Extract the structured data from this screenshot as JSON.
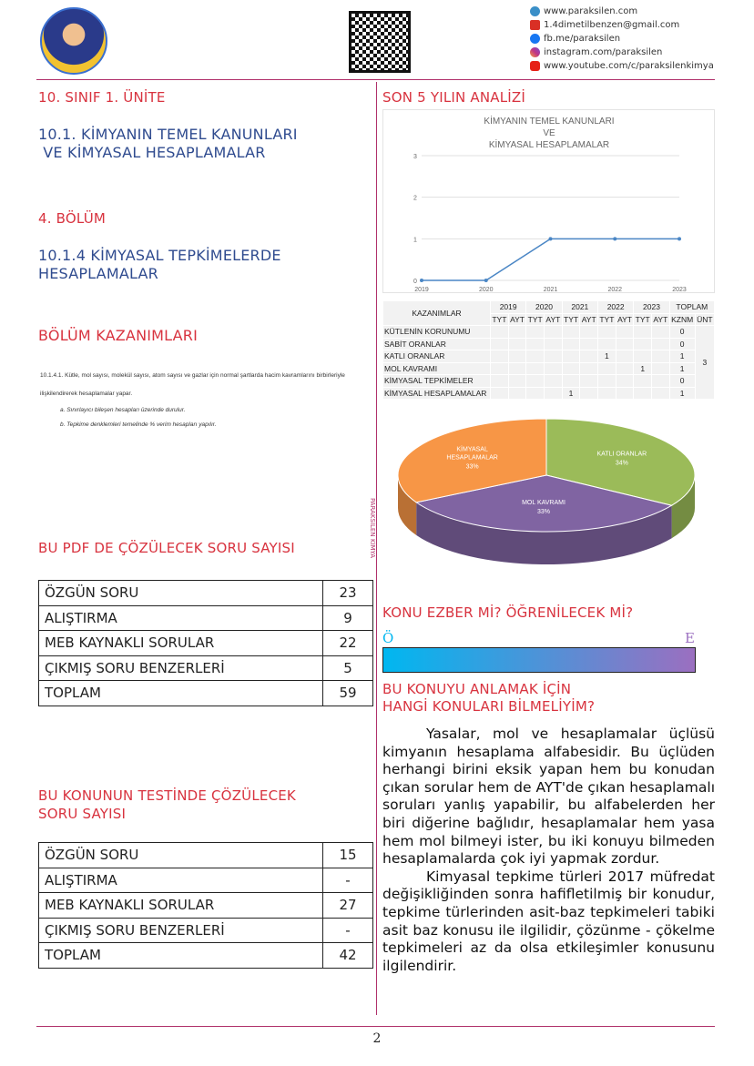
{
  "header": {
    "contacts": [
      {
        "icon": "web-icon",
        "text": "www.paraksilen.com",
        "color": "#3a8fc8"
      },
      {
        "icon": "gmail-icon",
        "text": "1.4dimetilbenzen@gmail.com",
        "color": "#d93025"
      },
      {
        "icon": "facebook-icon",
        "text": "fb.me/paraksilen",
        "color": "#1877f2"
      },
      {
        "icon": "instagram-icon",
        "text": "instagram.com/paraksilen",
        "color": "#c13584"
      },
      {
        "icon": "youtube-icon",
        "text": "www.youtube.com/c/paraksilenkimya",
        "color": "#e62117"
      }
    ]
  },
  "left": {
    "unit": "10. SINIF 1. ÜNİTE",
    "topic_line1": "10.1. KİMYANIN TEMEL KANUNLARI",
    "topic_line2": " VE KİMYASAL HESAPLAMALAR",
    "section": "4. BÖLÜM",
    "subtopic_line1": "10.1.4 KİMYASAL TEPKİMELERDE",
    "subtopic_line2": "HESAPLAMALAR",
    "outcomes_title": "BÖLÜM KAZANIMLARI",
    "outcome_main": "10.1.4.1. Kütle, mol sayısı, molekül sayısı, atom sayısı ve gazlar için normal şartlarda hacim kavramlarını birbirleriyle ilişkilendirerek hesaplamalar yapar.",
    "outcome_a": "a. Sınırlayıcı bileşen hesapları üzerinde durulur.",
    "outcome_b": "b. Tepkime denklemleri temelinde % verim hesapları yapılır.",
    "pdf_title": "BU PDF DE ÇÖZÜLECEK SORU SAYISI",
    "pdf_rows": [
      [
        "ÖZGÜN SORU",
        "23"
      ],
      [
        "ALIŞTIRMA",
        "9"
      ],
      [
        "MEB KAYNAKLI SORULAR",
        "22"
      ],
      [
        "ÇIKMIŞ SORU BENZERLERİ",
        "5"
      ],
      [
        "TOPLAM",
        "59"
      ]
    ],
    "test_title_line1": "BU KONUNUN TESTİNDE ÇÖZÜLECEK",
    "test_title_line2": "SORU SAYISI",
    "test_rows": [
      [
        "ÖZGÜN SORU",
        "15"
      ],
      [
        "ALIŞTIRMA",
        "-"
      ],
      [
        "MEB KAYNAKLI SORULAR",
        "27"
      ],
      [
        "ÇIKMIŞ SORU BENZERLERİ",
        "-"
      ],
      [
        "TOPLAM",
        "42"
      ]
    ]
  },
  "divider_label": "PARAKSİLEN KİMYA",
  "right": {
    "analysis_title": "SON 5 YILIN ANALİZİ",
    "table_head": {
      "label": "KAZANIMLAR",
      "years": [
        "2019",
        "2020",
        "2021",
        "2022",
        "2023"
      ],
      "total": "TOPLAM",
      "sub": [
        "TYT",
        "AYT",
        "TYT",
        "AYT",
        "TYT",
        "AYT",
        "TYT",
        "AYT",
        "TYT",
        "AYT",
        "KZNM",
        "ÜNT"
      ]
    },
    "table_rows": [
      {
        "name": "KÜTLENİN KORUNUMU",
        "cells": [
          "",
          "",
          "",
          "",
          "",
          "",
          "",
          "",
          "",
          ""
        ],
        "kznm": "0"
      },
      {
        "name": "SABİT ORANLAR",
        "cells": [
          "",
          "",
          "",
          "",
          "",
          "",
          "",
          "",
          "",
          ""
        ],
        "kznm": "0"
      },
      {
        "name": "KATLI ORANLAR",
        "cells": [
          "",
          "",
          "",
          "",
          "",
          "",
          "1",
          "",
          "",
          ""
        ],
        "kznm": "1"
      },
      {
        "name": "MOL KAVRAMI",
        "cells": [
          "",
          "",
          "",
          "",
          "",
          "",
          "",
          "",
          "1",
          ""
        ],
        "kznm": "1"
      },
      {
        "name": "KİMYASAL TEPKİMELER",
        "cells": [
          "",
          "",
          "",
          "",
          "",
          "",
          "",
          "",
          "",
          ""
        ],
        "kznm": "0"
      },
      {
        "name": "KİMYASAL HESAPLAMALAR",
        "cells": [
          "",
          "",
          "",
          "",
          "1",
          "",
          "",
          "",
          "",
          ""
        ],
        "kznm": "1"
      }
    ],
    "table_unit_total": "3",
    "ezber_title": "KONU EZBER Mİ? ÖĞRENİLECEK Mİ?",
    "scale_left": "Ö",
    "scale_right": "E",
    "prereq_line1": "BU KONUYU ANLAMAK İÇİN",
    "prereq_line2": "HANGİ KONULARI BİLMELİYİM?",
    "para1": "Yasalar, mol ve hesaplamalar üçlüsü kimyanın hesaplama alfabesidir. Bu üçlüden herhangi birini eksik yapan hem bu konudan çıkan sorular hem de AYT'de çıkan hesaplamalı soruları yanlış yapabilir, bu alfabelerden her biri diğerine bağlıdır, hesaplamalar hem yasa hem mol bilmeyi ister, bu iki konuyu bilmeden hesaplamalarda çok iyi yapmak zordur.",
    "para2": "Kimyasal tepkime türleri 2017 müfredat değişikliğinden sonra hafifletilmiş bir konudur, tepkime türlerinden asit-baz tepkimeleri tabiki asit baz konusu ile ilgilidir, çözünme - çökelme tepkimeleri az da olsa etkileşimler konusunu ilgilendirir."
  },
  "page_number": "2",
  "chart_data": [
    {
      "type": "line",
      "title": [
        "KİMYANIN TEMEL KANUNLARI",
        "VE",
        "KİMYASAL HESAPLAMALAR"
      ],
      "x": [
        "2019",
        "2020",
        "2021",
        "2022",
        "2023"
      ],
      "values": [
        0,
        0,
        1,
        1,
        1
      ],
      "ylim": [
        0,
        3
      ],
      "yticks": [
        "0",
        "1",
        "2",
        "3"
      ],
      "color": "#4a86c5",
      "grid": true
    },
    {
      "type": "pie",
      "series": [
        {
          "name": "KATLI ORANLAR",
          "value": 34,
          "label": "34%",
          "color": "#9bbb59"
        },
        {
          "name": "MOL KAVRAMI",
          "value": 33,
          "label": "33%",
          "color": "#8064a2"
        },
        {
          "name": "KİMYASAL HESAPLAMALAR",
          "value": 33,
          "label": "33%",
          "color": "#f79646"
        }
      ]
    }
  ]
}
